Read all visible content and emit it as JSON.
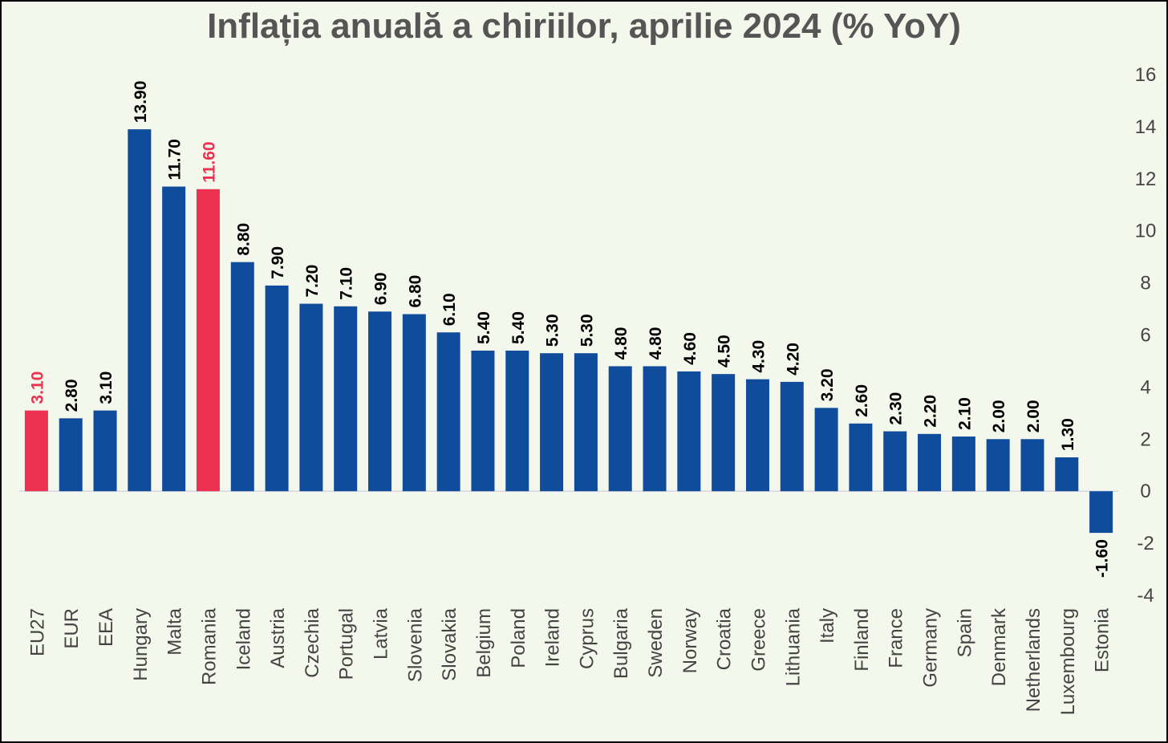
{
  "chart_data": {
    "type": "bar",
    "title": "Inflația anuală a chiriilor, aprilie 2024 (% YoY)",
    "xlabel": "",
    "ylabel": "",
    "ylim": [
      -4,
      16
    ],
    "yticks": [
      -4,
      -2,
      0,
      2,
      4,
      6,
      8,
      10,
      12,
      14,
      16
    ],
    "y_axis_position": "right",
    "grid": false,
    "categories": [
      "EU27",
      "EUR",
      "EEA",
      "Hungary",
      "Malta",
      "Romania",
      "Iceland",
      "Austria",
      "Czechia",
      "Portugal",
      "Latvia",
      "Slovenia",
      "Slovakia",
      "Belgium",
      "Poland",
      "Ireland",
      "Cyprus",
      "Bulgaria",
      "Sweden",
      "Norway",
      "Croatia",
      "Greece",
      "Lithuania",
      "Italy",
      "Finland",
      "France",
      "Germany",
      "Spain",
      "Denmark",
      "Netherlands",
      "Luxembourg",
      "Estonia"
    ],
    "values": [
      3.1,
      2.8,
      3.1,
      13.9,
      11.7,
      11.6,
      8.8,
      7.9,
      7.2,
      7.1,
      6.9,
      6.8,
      6.1,
      5.4,
      5.4,
      5.3,
      5.3,
      4.8,
      4.8,
      4.6,
      4.5,
      4.3,
      4.2,
      3.2,
      2.6,
      2.3,
      2.2,
      2.1,
      2.0,
      2.0,
      1.3,
      -1.6
    ],
    "data_labels": [
      "3.10",
      "2.80",
      "3.10",
      "13.90",
      "11.70",
      "11.60",
      "8.80",
      "7.90",
      "7.20",
      "7.10",
      "6.90",
      "6.80",
      "6.10",
      "5.40",
      "5.40",
      "5.30",
      "5.30",
      "4.80",
      "4.80",
      "4.60",
      "4.50",
      "4.30",
      "4.20",
      "3.20",
      "2.60",
      "2.30",
      "2.20",
      "2.10",
      "2.00",
      "2.00",
      "1.30",
      "-1.60"
    ],
    "highlighted": [
      "EU27",
      "Romania"
    ],
    "colors": {
      "bar": "#0f4c9b",
      "highlight": "#ec3250",
      "label": "#000000",
      "highlight_label": "#ec3250",
      "background": "#f4f7ec",
      "axis_text": "#444444",
      "title": "#555555"
    }
  }
}
